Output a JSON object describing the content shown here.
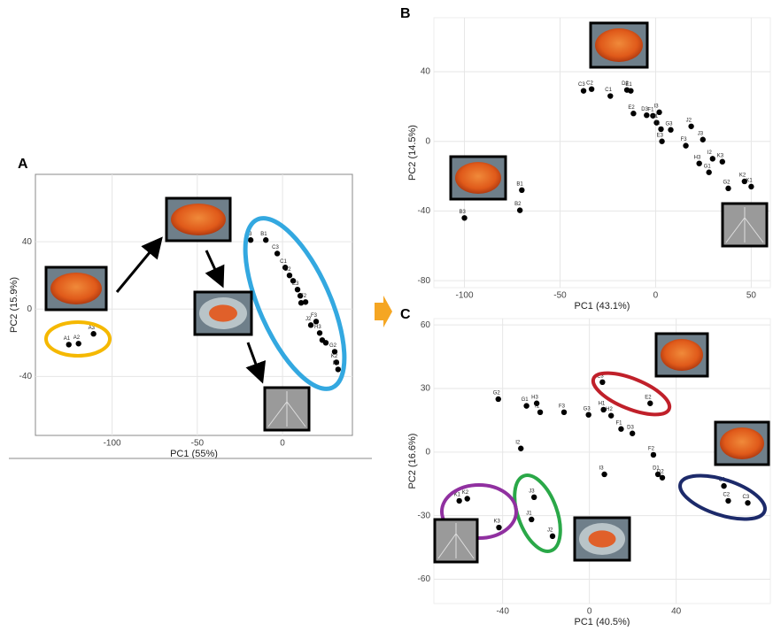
{
  "chart_data": [
    {
      "type": "scatter",
      "panel": "A",
      "x_label": "PC1 (55%)",
      "y_label": "PC2 (15.9%)",
      "color": "#000000",
      "grid": true,
      "xlim": [
        -145,
        41
      ],
      "ylim": [
        -75,
        80
      ],
      "xticks": [
        -100,
        -50,
        0
      ],
      "yticks": [
        40,
        0,
        -40
      ],
      "labels": [
        "A1",
        "A2",
        "A3",
        "B3",
        "B1",
        "C3",
        "C1",
        "D2",
        null,
        "E3",
        null,
        "F2",
        null,
        "F3",
        "J2",
        "H3",
        null,
        null,
        "G2",
        "K2",
        "K1"
      ],
      "x": [
        -125.4,
        -119.7,
        -110.9,
        -18.7,
        -9.8,
        -3.1,
        1.6,
        4.1,
        6.2,
        8.8,
        10.4,
        13.5,
        10.9,
        19.7,
        16.6,
        21.8,
        23.3,
        25.4,
        30.6,
        31.6,
        32.6
      ],
      "y": [
        -21.1,
        -20.5,
        -14.7,
        41,
        41,
        33,
        24.7,
        20,
        16.8,
        11.6,
        7.9,
        4.2,
        3.7,
        -7.4,
        -9.5,
        -14.2,
        -18.4,
        -20,
        -25.3,
        -31.6,
        -35.8
      ]
    },
    {
      "type": "scatter",
      "panel": "B",
      "x_label": "PC1 (43.1%)",
      "y_label": "PC2 (14.5%)",
      "color": "#000000",
      "grid": true,
      "xlim": [
        -116,
        60
      ],
      "ylim": [
        -84,
        71
      ],
      "xticks": [
        -100,
        -50,
        0,
        50
      ],
      "yticks": [
        40,
        0,
        -40,
        -80
      ],
      "labels": [
        "C3",
        "C2",
        "C1",
        "D2",
        "E1",
        "E2",
        "D3",
        "F1",
        "I3",
        "H1",
        "G3",
        "I1",
        "E3",
        "J2",
        "F3",
        "J3",
        "H3",
        "I2",
        "K3",
        "G1",
        "G2",
        "K2",
        "K1",
        "B1",
        "B2",
        "B3"
      ],
      "x": [
        -37.7,
        -33.5,
        -23.7,
        -15,
        -13,
        -11.6,
        -4.7,
        -1.4,
        1.9,
        0.5,
        7.9,
        2.8,
        3.3,
        18.6,
        15.8,
        24.7,
        22.8,
        29.8,
        34.9,
        27.9,
        38,
        46.5,
        50,
        -70,
        -71,
        -100
      ],
      "y": [
        29,
        30,
        26,
        29.5,
        29,
        16,
        15,
        14.7,
        16.7,
        10.7,
        6.6,
        7,
        0,
        8.6,
        -2.5,
        1,
        -12.7,
        -10,
        -11.7,
        -17.8,
        -27,
        -23,
        -26,
        -28,
        -39.6,
        -44
      ]
    },
    {
      "type": "scatter",
      "panel": "C",
      "x_label": "PC1 (40.5%)",
      "y_label": "PC2 (16.6%)",
      "color": "#000000",
      "grid": true,
      "xlim": [
        -71.7,
        83.4
      ],
      "ylim": [
        -71.5,
        63
      ],
      "xticks": [
        -40,
        0,
        40
      ],
      "yticks": [
        60,
        30,
        0,
        -30,
        -60
      ],
      "labels": [
        "G2",
        "G1",
        "H3",
        "I1",
        "F3",
        "G3",
        "E3",
        "H1",
        "H2",
        "F1",
        "D3",
        "E2",
        "F2",
        "D1",
        "D2",
        "I2",
        "I3",
        "C1",
        "C2",
        "C3",
        "J3",
        "J1",
        "J2",
        "K1",
        "K2",
        "K3"
      ],
      "x": [
        -42,
        -29,
        -24.3,
        -22.7,
        -11.7,
        -0.4,
        6,
        6.5,
        10,
        14.6,
        19.8,
        28,
        29.5,
        31.6,
        33.6,
        -31.6,
        6.9,
        62,
        64,
        73,
        -25.5,
        -26.7,
        -17,
        -60,
        -56.3,
        -41.7
      ],
      "y": [
        25,
        21.8,
        23,
        18.8,
        18.8,
        17.6,
        33,
        20,
        17.2,
        10.9,
        8.8,
        23,
        -1.3,
        -10.5,
        -12.1,
        1.7,
        -10.5,
        -16,
        -23,
        -24,
        -21.3,
        -31.8,
        -39.7,
        -23,
        -22,
        -35.6
      ]
    }
  ]
}
